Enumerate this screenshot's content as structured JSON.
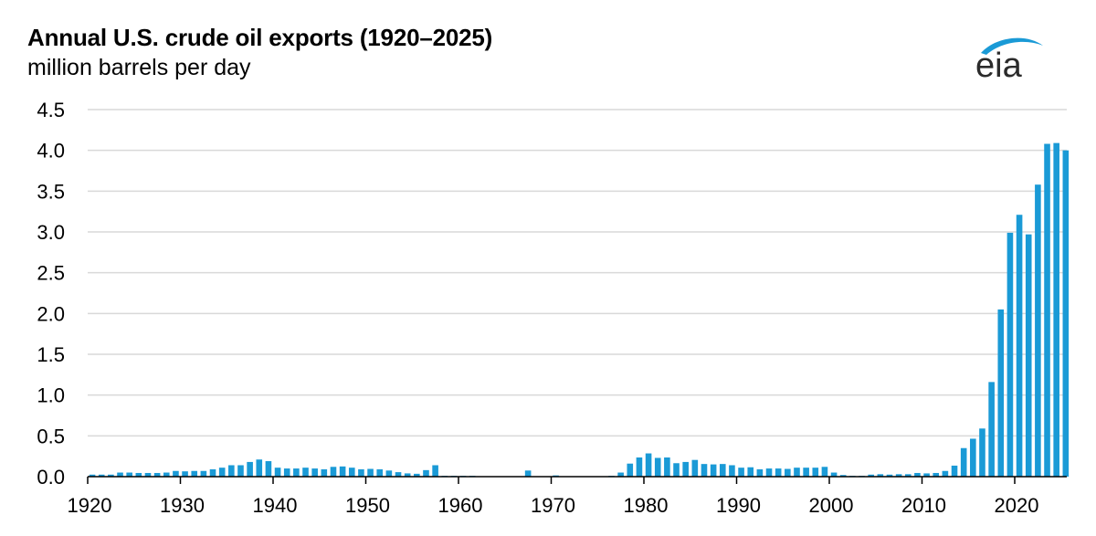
{
  "header": {
    "title": "Annual U.S. crude oil exports (1920–2025)",
    "subtitle": "million barrels per day",
    "logo_text": "eia"
  },
  "colors": {
    "bar": "#1a9ad6",
    "grid": "#d9d9d9",
    "axis": "#000000",
    "logo_swoosh": "#1a9ad6"
  },
  "chart_data": {
    "type": "bar",
    "title": "Annual U.S. crude oil exports (1920–2025)",
    "ylabel": "million barrels per day",
    "xlabel": "",
    "ylim": [
      0,
      4.5
    ],
    "yticks": [
      "0.0",
      "0.5",
      "1.0",
      "1.5",
      "2.0",
      "2.5",
      "3.0",
      "3.5",
      "4.0",
      "4.5"
    ],
    "xticks": [
      "1920",
      "1930",
      "1940",
      "1950",
      "1960",
      "1970",
      "1980",
      "1990",
      "2000",
      "2010",
      "2020"
    ],
    "grid": true,
    "legend": "none",
    "categories": [
      1920,
      1921,
      1922,
      1923,
      1924,
      1925,
      1926,
      1927,
      1928,
      1929,
      1930,
      1931,
      1932,
      1933,
      1934,
      1935,
      1936,
      1937,
      1938,
      1939,
      1940,
      1941,
      1942,
      1943,
      1944,
      1945,
      1946,
      1947,
      1948,
      1949,
      1950,
      1951,
      1952,
      1953,
      1954,
      1955,
      1956,
      1957,
      1958,
      1959,
      1960,
      1961,
      1962,
      1963,
      1964,
      1965,
      1966,
      1967,
      1968,
      1969,
      1970,
      1971,
      1972,
      1973,
      1974,
      1975,
      1976,
      1977,
      1978,
      1979,
      1980,
      1981,
      1982,
      1983,
      1984,
      1985,
      1986,
      1987,
      1988,
      1989,
      1990,
      1991,
      1992,
      1993,
      1994,
      1995,
      1996,
      1997,
      1998,
      1999,
      2000,
      2001,
      2002,
      2003,
      2004,
      2005,
      2006,
      2007,
      2008,
      2009,
      2010,
      2011,
      2012,
      2013,
      2014,
      2015,
      2016,
      2017,
      2018,
      2019,
      2020,
      2021,
      2022,
      2023,
      2024,
      2025
    ],
    "values": [
      0.025,
      0.025,
      0.025,
      0.05,
      0.05,
      0.045,
      0.045,
      0.045,
      0.05,
      0.07,
      0.065,
      0.07,
      0.07,
      0.09,
      0.11,
      0.14,
      0.14,
      0.18,
      0.21,
      0.19,
      0.11,
      0.1,
      0.1,
      0.11,
      0.1,
      0.09,
      0.12,
      0.125,
      0.11,
      0.09,
      0.095,
      0.09,
      0.075,
      0.055,
      0.04,
      0.035,
      0.08,
      0.14,
      0.01,
      0.01,
      0.01,
      0.01,
      0.005,
      0.005,
      0.005,
      0.005,
      0.005,
      0.075,
      0.005,
      0.005,
      0.015,
      0.005,
      0.005,
      0.005,
      0.005,
      0.005,
      0.01,
      0.05,
      0.16,
      0.235,
      0.285,
      0.23,
      0.235,
      0.165,
      0.18,
      0.205,
      0.155,
      0.15,
      0.155,
      0.14,
      0.11,
      0.115,
      0.09,
      0.1,
      0.1,
      0.095,
      0.11,
      0.11,
      0.11,
      0.12,
      0.05,
      0.02,
      0.01,
      0.01,
      0.025,
      0.03,
      0.025,
      0.03,
      0.03,
      0.045,
      0.04,
      0.045,
      0.07,
      0.135,
      0.35,
      0.465,
      0.59,
      1.16,
      2.05,
      2.99,
      3.21,
      2.97,
      3.58,
      4.08,
      4.09,
      4.0
    ]
  }
}
